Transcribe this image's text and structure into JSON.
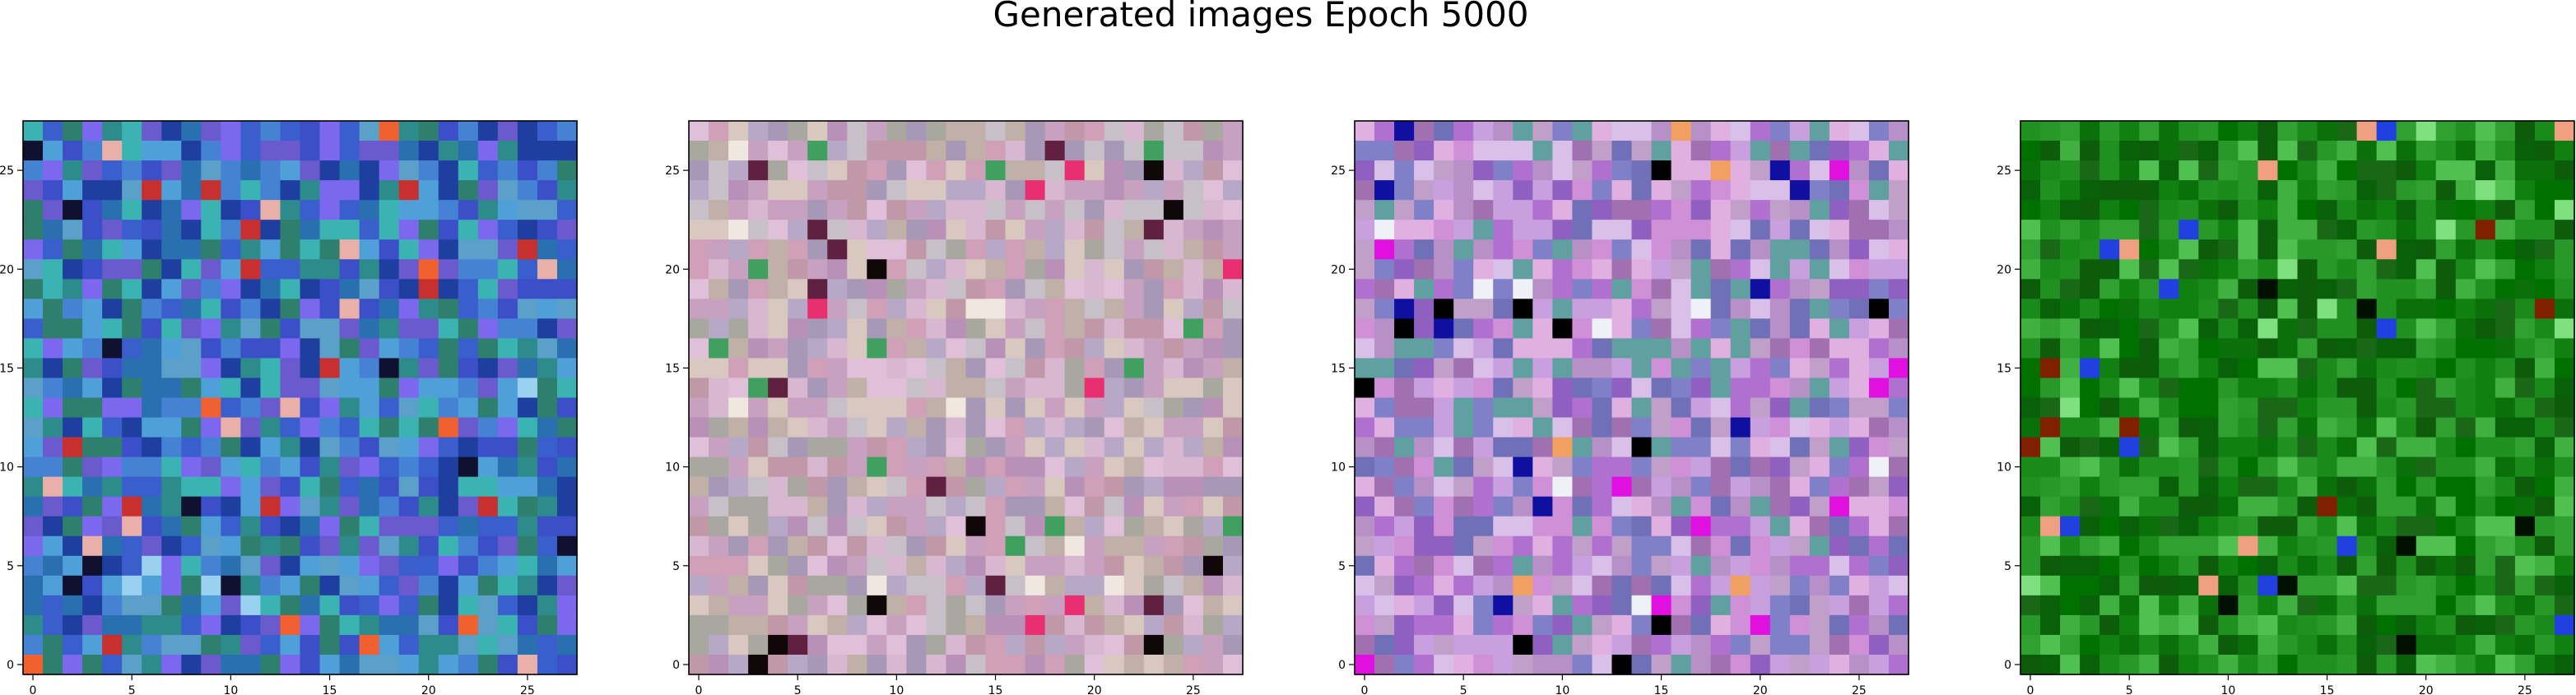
{
  "figure": {
    "title": "Generated images Epoch 5000"
  },
  "chart_data": [
    {
      "type": "heatmap",
      "content": "image",
      "grid_size": 28,
      "xlim": [
        -0.5,
        27.5
      ],
      "ylim": [
        27.5,
        -0.5
      ],
      "x_ticks": [
        0,
        5,
        10,
        15,
        20,
        25
      ],
      "y_ticks": [
        0,
        5,
        10,
        15,
        20,
        25
      ],
      "palette": [
        "#3a5fcd",
        "#4682d4",
        "#2e8b8b",
        "#3cb3b3",
        "#6a5acd",
        "#2a6fb0",
        "#4f9fd8",
        "#1f3fa0",
        "#7b68ee",
        "#5aa0c8",
        "#2f7f6f",
        "#3b4fc8"
      ],
      "accents": [
        "#c83030",
        "#f06030",
        "#e8b0a8",
        "#101030",
        "#9ad0f0"
      ],
      "seed": 11
    },
    {
      "type": "heatmap",
      "content": "image",
      "grid_size": 28,
      "xlim": [
        -0.5,
        27.5
      ],
      "ylim": [
        27.5,
        -0.5
      ],
      "x_ticks": [
        0,
        5,
        10,
        15,
        20,
        25
      ],
      "y_ticks": [
        0,
        5,
        10,
        15,
        20,
        25
      ],
      "palette": [
        "#c8a0c0",
        "#d8b8d0",
        "#b890b8",
        "#c0b0a8",
        "#e0c0d8",
        "#a8a8a0",
        "#d0a0b8",
        "#c8c0c8",
        "#b8a8c8",
        "#d8c8c0",
        "#a898b8",
        "#c098a8"
      ],
      "accents": [
        "#100808",
        "#e83070",
        "#40a060",
        "#f0e8e0",
        "#602040"
      ],
      "seed": 23
    },
    {
      "type": "heatmap",
      "content": "image",
      "grid_size": 28,
      "xlim": [
        -0.5,
        27.5
      ],
      "ylim": [
        27.5,
        -0.5
      ],
      "x_ticks": [
        0,
        5,
        10,
        15,
        20,
        25
      ],
      "y_ticks": [
        0,
        5,
        10,
        15,
        20,
        25
      ],
      "palette": [
        "#b070d0",
        "#c8a0e0",
        "#9060c0",
        "#d090d8",
        "#8080c8",
        "#c0a0c8",
        "#a070b0",
        "#e0b0e0",
        "#7070b8",
        "#b890c8",
        "#60a0a0",
        "#d8c0e8"
      ],
      "accents": [
        "#000000",
        "#1010a0",
        "#e010e0",
        "#f0f0f8",
        "#f0a060"
      ],
      "seed": 37
    },
    {
      "type": "heatmap",
      "content": "image",
      "grid_size": 28,
      "xlim": [
        -0.5,
        27.5
      ],
      "ylim": [
        27.5,
        -0.5
      ],
      "x_ticks": [
        0,
        5,
        10,
        15,
        20,
        25
      ],
      "y_ticks": [
        0,
        5,
        10,
        15,
        20,
        25
      ],
      "palette": [
        "#108010",
        "#209020",
        "#0a700a",
        "#30a030",
        "#007000",
        "#40b040",
        "#186818",
        "#289828",
        "#0c5c0c",
        "#50c050",
        "#1a8a1a",
        "#086008"
      ],
      "accents": [
        "#001000",
        "#80e080",
        "#f0a080",
        "#2040e0",
        "#802000"
      ],
      "seed": 53
    }
  ]
}
